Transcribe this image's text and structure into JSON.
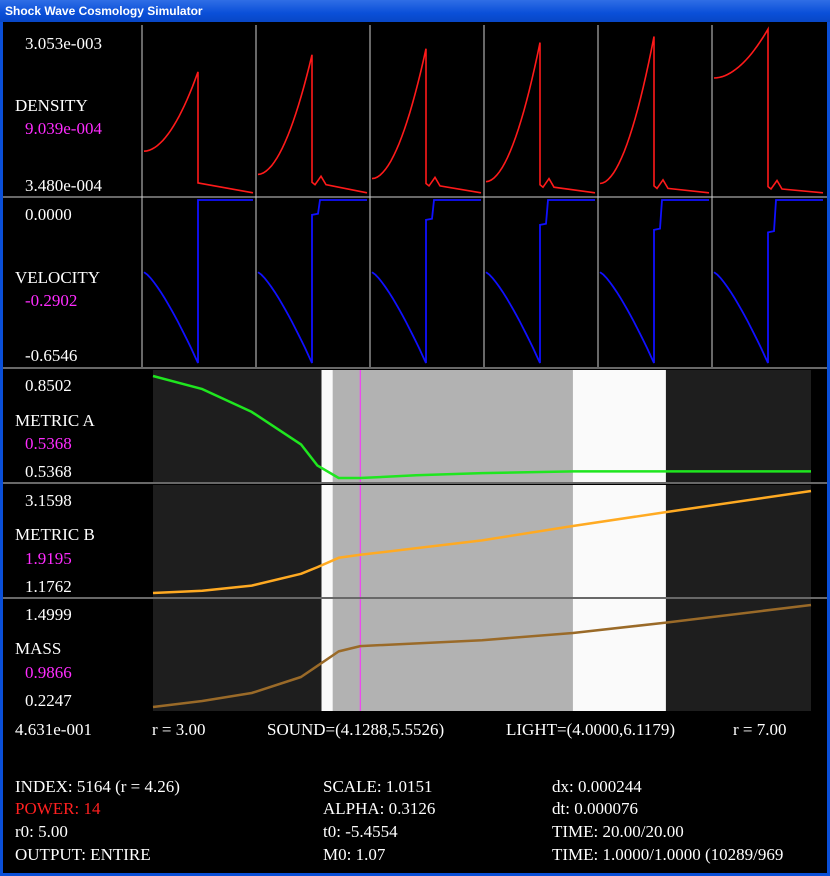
{
  "window": {
    "title": "Shock Wave Cosmology Simulator"
  },
  "panels": {
    "density": {
      "label": "DENSITY",
      "max": "3.053e-003",
      "current": "9.039e-004",
      "min": "3.480e-004",
      "color": "#ff1a1a"
    },
    "velocity": {
      "label": "VELOCITY",
      "max": "0.0000",
      "current": "-0.2902",
      "min": "-0.6546",
      "color": "#1010ff"
    },
    "metric_a": {
      "label": "METRIC A",
      "max": "0.8502",
      "current": "0.5368",
      "min": "0.5368",
      "color": "#1fe61f"
    },
    "metric_b": {
      "label": "METRIC B",
      "max": "3.1598",
      "current": "1.9195",
      "min": "1.1762",
      "color": "#ffaa22"
    },
    "mass": {
      "label": "MASS",
      "max": "1.4999",
      "current": "0.9866",
      "min": "0.2247",
      "color": "#9a6a28"
    }
  },
  "ranges": {
    "left_value": "4.631e-001",
    "r_start": "r = 3.00",
    "sound": "SOUND=(4.1288,5.5526)",
    "light": "LIGHT=(4.0000,6.1179)",
    "r_end": "r = 7.00"
  },
  "status": {
    "index": "INDEX: 5164 (r = 4.26)",
    "power": "POWER: 14",
    "r0": "r0: 5.00",
    "output": "OUTPUT: ENTIRE",
    "scale": "SCALE: 1.0151",
    "alpha": "ALPHA: 0.3126",
    "t0": "t0: -5.4554",
    "m0": "M0: 1.07",
    "dx": "dx: 0.000244",
    "dt": "dt: 0.000076",
    "time1": "TIME: 20.00/20.00",
    "time2": "TIME: 1.0000/1.0000 (10289/969"
  },
  "chart_data": [
    {
      "type": "line",
      "series_name": "DENSITY",
      "snapshot_count": 6,
      "ylim": [
        0.000348,
        0.003053
      ],
      "snapshots": [
        {
          "peak": 0.00235,
          "start": 0.00105,
          "tail": 0.00041
        },
        {
          "peak": 0.00263,
          "start": 0.00067,
          "tail": 0.00042
        },
        {
          "peak": 0.00273,
          "start": 0.0006,
          "tail": 0.0004
        },
        {
          "peak": 0.00283,
          "start": 0.00055,
          "tail": 0.00038
        },
        {
          "peak": 0.00293,
          "start": 0.00052,
          "tail": 0.00036
        },
        {
          "peak": 0.00305,
          "start": 0.00225,
          "tail": 0.00035
        }
      ]
    },
    {
      "type": "line",
      "series_name": "VELOCITY",
      "snapshot_count": 6,
      "ylim": [
        -0.6546,
        0.0
      ],
      "min_value": -0.6546,
      "top_value": 0.0
    },
    {
      "type": "line",
      "series_name": "METRIC A",
      "ylim": [
        0.5368,
        0.8502
      ],
      "x": [
        3.0,
        3.3,
        3.6,
        3.9,
        4.0,
        4.1288,
        4.26,
        4.6,
        5.0,
        5.5526,
        6.1179,
        7.0
      ],
      "y": [
        0.8502,
        0.81,
        0.74,
        0.64,
        0.575,
        0.5368,
        0.5368,
        0.545,
        0.552,
        0.557,
        0.557,
        0.557
      ]
    },
    {
      "type": "line",
      "series_name": "METRIC B",
      "ylim": [
        1.1762,
        3.1598
      ],
      "x": [
        3.0,
        3.3,
        3.6,
        3.9,
        4.0,
        4.1288,
        4.26,
        5.0,
        5.5526,
        6.1179,
        7.0
      ],
      "y": [
        1.1762,
        1.22,
        1.32,
        1.55,
        1.68,
        1.86,
        1.9195,
        2.2,
        2.48,
        2.75,
        3.1598
      ]
    },
    {
      "type": "line",
      "series_name": "MASS",
      "ylim": [
        0.2247,
        1.4999
      ],
      "x": [
        3.0,
        3.3,
        3.6,
        3.9,
        4.0,
        4.1288,
        4.26,
        5.0,
        5.5526,
        6.1179,
        7.0
      ],
      "y": [
        0.2247,
        0.3,
        0.4,
        0.6,
        0.74,
        0.92,
        0.9866,
        1.06,
        1.15,
        1.28,
        1.4999
      ]
    }
  ]
}
